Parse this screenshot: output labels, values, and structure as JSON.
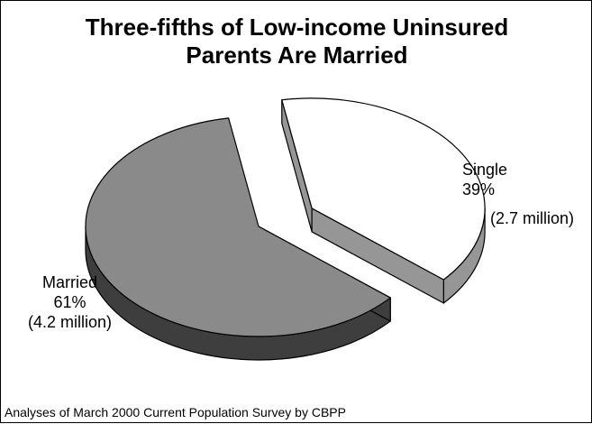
{
  "colors": {
    "married_top": "#8a8a8a",
    "married_side": "#3e3e3e",
    "single_top": "#ffffff",
    "single_side": "#969696",
    "outline": "#000000"
  },
  "chart_data": {
    "type": "pie",
    "title_lines": [
      "Three-fifths of Low-income Uninsured",
      "Parents Are Married"
    ],
    "slices": [
      {
        "category": "Married",
        "percent": 61,
        "percent_label": "61%",
        "count_label": "(4.2 million)",
        "exploded": false
      },
      {
        "category": "Single",
        "percent": 39,
        "percent_label": "39%",
        "count_label": "(2.7 million)",
        "exploded": true
      }
    ],
    "three_d": true,
    "source": "Analyses of March 2000 Current Population Survey by CBPP"
  }
}
